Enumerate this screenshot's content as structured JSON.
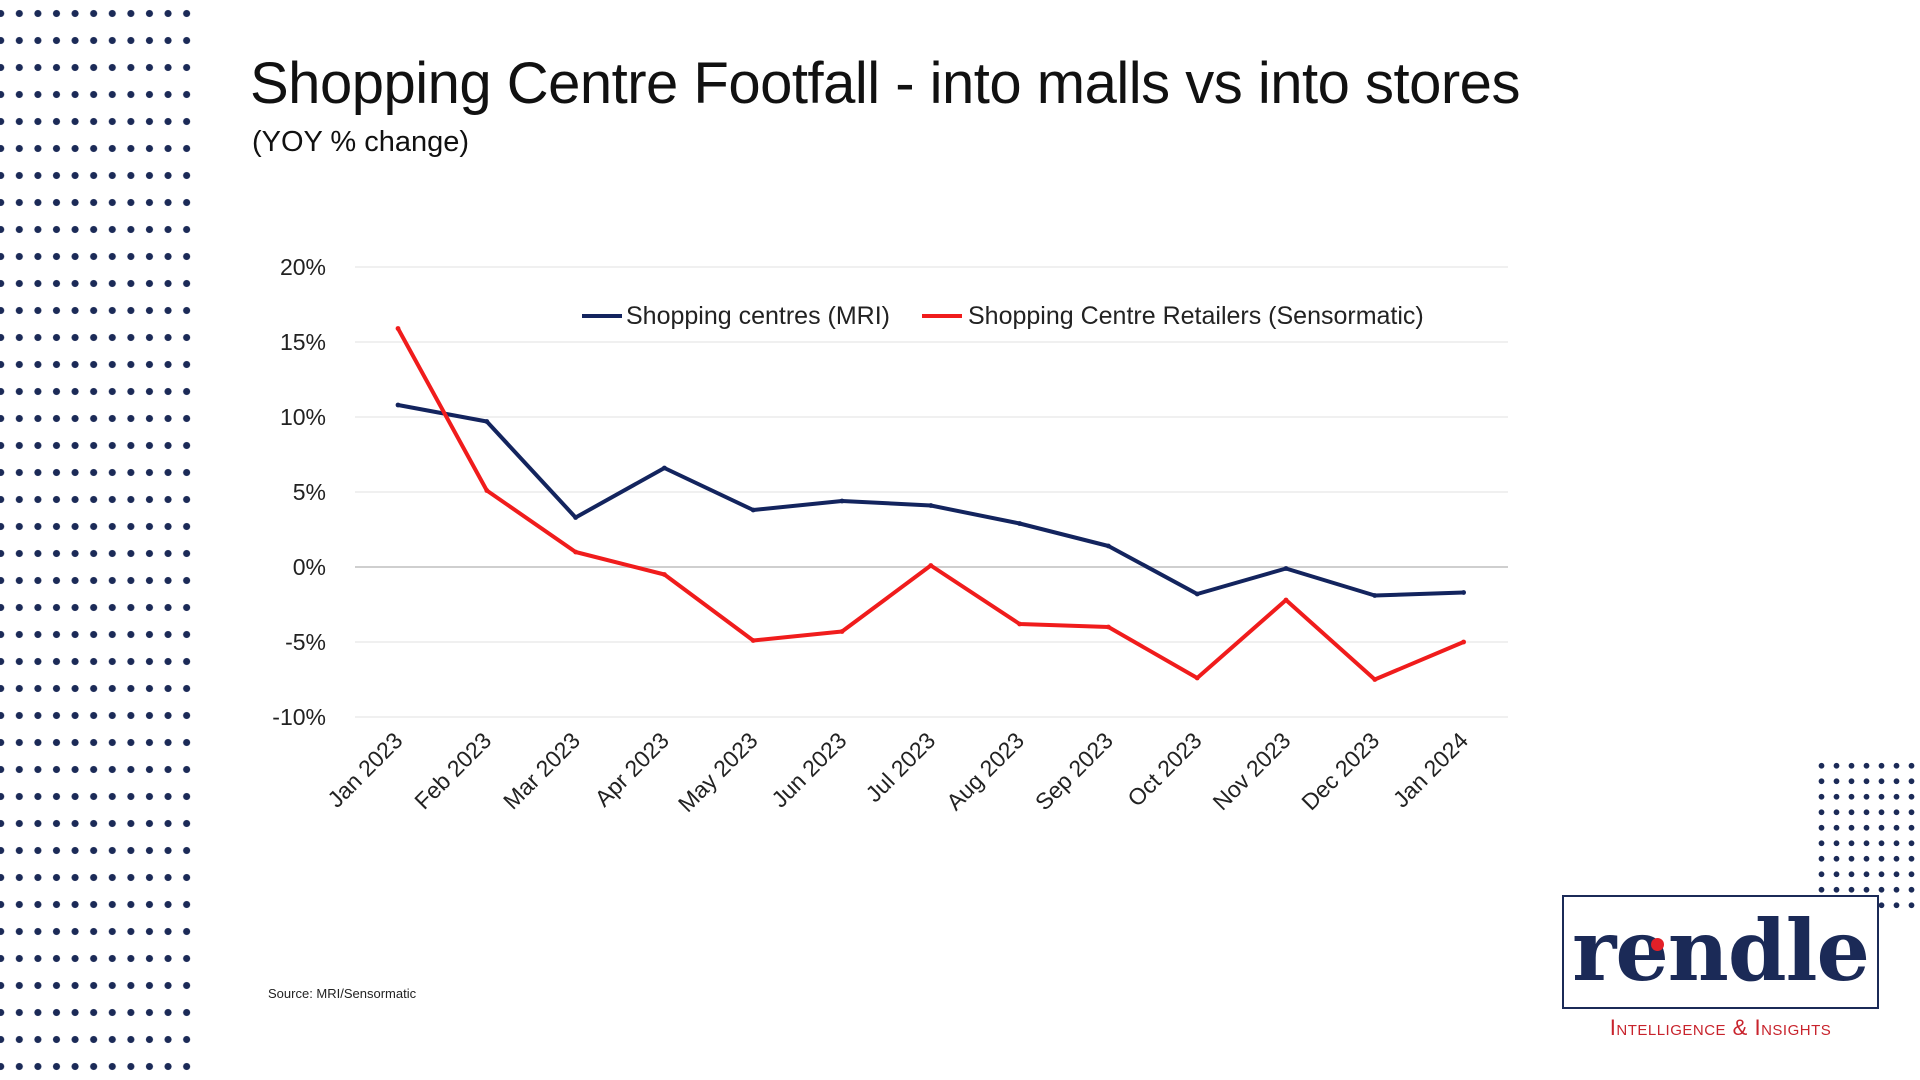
{
  "slide": {
    "title": "Shopping Centre Footfall - into malls vs into stores",
    "subtitle": "(YOY % change)",
    "source": "Source: MRI/Sensormatic"
  },
  "logo": {
    "wordmark": "rendle",
    "tagline": "Intelligence & Insights",
    "colors": {
      "navy": "#1b2a57",
      "red": "#e32028"
    }
  },
  "chart_data": {
    "type": "line",
    "x": [
      "Jan 2023",
      "Feb 2023",
      "Mar 2023",
      "Apr 2023",
      "May 2023",
      "Jun 2023",
      "Jul 2023",
      "Aug 2023",
      "Sep 2023",
      "Oct 2023",
      "Nov 2023",
      "Dec 2023",
      "Jan 2024"
    ],
    "series": [
      {
        "name": "Shopping centres (MRI)",
        "color": "#13245e",
        "values": [
          10.8,
          9.7,
          3.3,
          6.6,
          3.8,
          4.4,
          4.1,
          2.9,
          1.4,
          -1.8,
          -0.1,
          -1.9,
          -1.7
        ]
      },
      {
        "name": "Shopping Centre Retailers (Sensormatic)",
        "color": "#f01c1c",
        "values": [
          15.9,
          5.1,
          1.0,
          -0.5,
          -4.9,
          -4.3,
          0.1,
          -3.8,
          -4.0,
          -7.4,
          -2.2,
          -7.5,
          -5.0
        ]
      }
    ],
    "yticks": [
      "-10%",
      "-5%",
      "0%",
      "5%",
      "10%",
      "15%",
      "20%"
    ],
    "ylim": [
      -10,
      20
    ],
    "grid": true,
    "legend_position": "top"
  }
}
